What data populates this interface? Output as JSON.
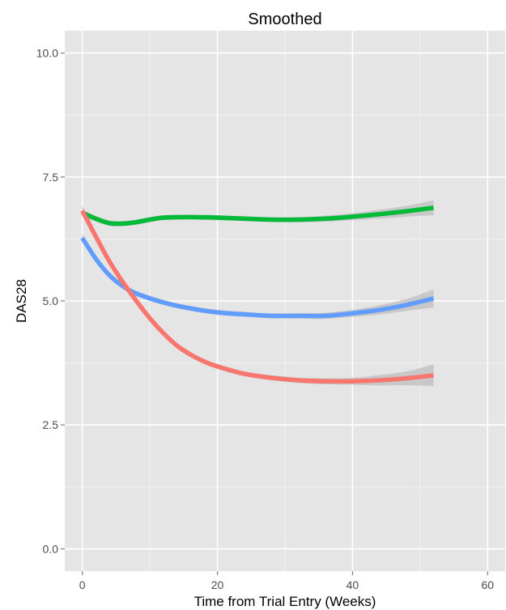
{
  "chart_data": {
    "type": "line",
    "title": "Smoothed",
    "xlabel": "Time from Trial Entry (Weeks)",
    "ylabel": "DAS28",
    "xlim": [
      -2.6,
      62.6
    ],
    "ylim": [
      -0.45,
      10.45
    ],
    "x_ticks": [
      0,
      20,
      40,
      60
    ],
    "x_tick_labels": [
      "0",
      "20",
      "40",
      "60"
    ],
    "y_ticks": [
      0,
      2.5,
      5,
      7.5,
      10
    ],
    "y_tick_labels": [
      "0.0",
      "2.5",
      "5.0",
      "7.5",
      "10.0"
    ],
    "grid": true,
    "legend": "none",
    "panel_color": "#e5e5e5",
    "grid_color": "#ffffff",
    "band_color": "#c3c3c3",
    "series": [
      {
        "color": "#00ba38",
        "points": [
          [
            0,
            6.78
          ],
          [
            2,
            6.66
          ],
          [
            4,
            6.57
          ],
          [
            6,
            6.56
          ],
          [
            8,
            6.59
          ],
          [
            10,
            6.64
          ],
          [
            12,
            6.68
          ],
          [
            16,
            6.69
          ],
          [
            20,
            6.68
          ],
          [
            24,
            6.66
          ],
          [
            28,
            6.64
          ],
          [
            32,
            6.64
          ],
          [
            36,
            6.66
          ],
          [
            40,
            6.7
          ],
          [
            44,
            6.75
          ],
          [
            48,
            6.81
          ],
          [
            52,
            6.88
          ]
        ],
        "band": [
          [
            0,
            0.06
          ],
          [
            10,
            0.05
          ],
          [
            20,
            0.05
          ],
          [
            30,
            0.05
          ],
          [
            40,
            0.07
          ],
          [
            48,
            0.11
          ],
          [
            52,
            0.15
          ]
        ]
      },
      {
        "color": "#619cff",
        "points": [
          [
            0,
            6.27
          ],
          [
            2,
            5.85
          ],
          [
            4,
            5.52
          ],
          [
            6,
            5.3
          ],
          [
            8,
            5.15
          ],
          [
            12,
            4.97
          ],
          [
            16,
            4.85
          ],
          [
            20,
            4.77
          ],
          [
            24,
            4.73
          ],
          [
            28,
            4.7
          ],
          [
            32,
            4.7
          ],
          [
            36,
            4.7
          ],
          [
            40,
            4.75
          ],
          [
            44,
            4.82
          ],
          [
            48,
            4.92
          ],
          [
            52,
            5.05
          ]
        ],
        "band": [
          [
            0,
            0.07
          ],
          [
            10,
            0.05
          ],
          [
            20,
            0.05
          ],
          [
            30,
            0.05
          ],
          [
            40,
            0.07
          ],
          [
            48,
            0.12
          ],
          [
            52,
            0.18
          ]
        ]
      },
      {
        "color": "#f8766d",
        "points": [
          [
            0,
            6.82
          ],
          [
            2,
            6.3
          ],
          [
            4,
            5.8
          ],
          [
            6,
            5.38
          ],
          [
            8,
            5.0
          ],
          [
            10,
            4.65
          ],
          [
            12,
            4.35
          ],
          [
            14,
            4.1
          ],
          [
            16,
            3.92
          ],
          [
            18,
            3.78
          ],
          [
            20,
            3.68
          ],
          [
            24,
            3.53
          ],
          [
            28,
            3.45
          ],
          [
            32,
            3.4
          ],
          [
            36,
            3.38
          ],
          [
            40,
            3.38
          ],
          [
            44,
            3.4
          ],
          [
            48,
            3.44
          ],
          [
            52,
            3.5
          ]
        ],
        "band": [
          [
            0,
            0.1
          ],
          [
            10,
            0.06
          ],
          [
            20,
            0.05
          ],
          [
            30,
            0.05
          ],
          [
            40,
            0.07
          ],
          [
            48,
            0.14
          ],
          [
            52,
            0.22
          ]
        ]
      }
    ]
  }
}
